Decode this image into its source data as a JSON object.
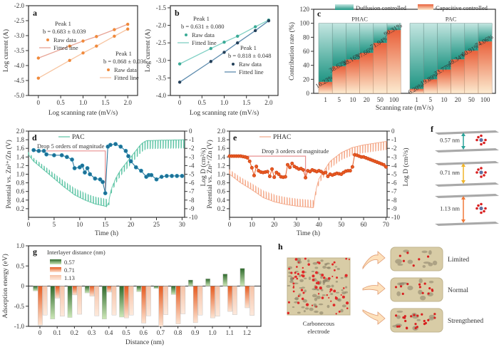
{
  "panels": {
    "a": {
      "letter": "a"
    },
    "b": {
      "letter": "b"
    },
    "c": {
      "letter": "c"
    },
    "d": {
      "letter": "d"
    },
    "e": {
      "letter": "e"
    },
    "f": {
      "letter": "f",
      "labels": [
        "0.57 nm",
        "0.71 nm",
        "1.13 nm"
      ],
      "arrow_colors": [
        "#2aa39a",
        "#f0b428",
        "#f07838"
      ]
    },
    "g": {
      "letter": "g"
    },
    "h": {
      "letter": "h",
      "electrode_label_1": "Carbonecous",
      "electrode_label_2": "electrode",
      "states": [
        "Limited",
        "Normal",
        "Strengthened"
      ]
    }
  },
  "chart_data": [
    {
      "id": "a",
      "type": "scatter",
      "xlabel": "Log scanning rate (mV/s)",
      "ylabel": "Log current (A)",
      "xlim": [
        -0.22,
        2.22
      ],
      "ylim": [
        -5.0,
        -2.0
      ],
      "xtick_labels": [
        "0",
        "0.5",
        "1.0",
        "1.5",
        "2.0"
      ],
      "ytick_labels": [
        "-2.0",
        "-2.5",
        "-3.0",
        "-3.5",
        "-4.0",
        "-4.5",
        "-5.0"
      ],
      "series": [
        {
          "name": "Raw data",
          "fit_name": "Fitted line",
          "peak": "Peak 1",
          "b": "b = 0.683  ± 0.039",
          "color": "#f08a3c",
          "line_color": "#e8a496",
          "x": [
            0,
            0.7,
            1.0,
            1.3,
            1.7,
            2.0
          ],
          "y": [
            -3.75,
            -3.35,
            -3.18,
            -3.03,
            -2.8,
            -2.62
          ]
        },
        {
          "name": "Raw data",
          "fit_name": "Fitted line",
          "peak": "Peak 1",
          "b": "b = 0.868  ± 0.036",
          "color": "#f08a3c",
          "line_color": "#f7c4a0",
          "x": [
            0,
            0.7,
            1.0,
            1.3,
            1.7,
            2.0
          ],
          "y": [
            -4.42,
            -3.83,
            -3.58,
            -3.35,
            -3.02,
            -2.78
          ]
        }
      ]
    },
    {
      "id": "b",
      "type": "scatter",
      "xlabel": "Log scanning rate (mV/s)",
      "ylabel": "Log current (A)",
      "xlim": [
        -0.21,
        2.21
      ],
      "ylim": [
        -4.0,
        -1.44
      ],
      "xtick_labels": [
        "0",
        "0.5",
        "1.0",
        "1.5",
        "2.0"
      ],
      "ytick_labels": [
        "-1.5",
        "-2.0",
        "-2.5",
        "-3.0",
        "-3.5",
        "-4.0"
      ],
      "series": [
        {
          "name": "Raw data",
          "fit_name": "Fitted line",
          "peak": "Peak 1",
          "b": "b = 0.631  ± 0.080",
          "color": "#3aaa96",
          "line_color": "#7fd0c4",
          "x": [
            0,
            0.7,
            1.0,
            1.3,
            1.7,
            2.0
          ],
          "y": [
            -3.1,
            -2.66,
            -2.48,
            -2.31,
            -2.04,
            -1.85
          ]
        },
        {
          "name": "Raw data",
          "fit_name": "Fitted line",
          "peak": "Peak 1",
          "b": "b = 0.818  ± 0.048",
          "color": "#24405a",
          "line_color": "#5e8cae",
          "x": [
            0,
            0.7,
            1.0,
            1.3,
            1.7,
            2.0
          ],
          "y": [
            -3.62,
            -3.03,
            -2.77,
            -2.5,
            -2.15,
            -1.87
          ]
        }
      ]
    },
    {
      "id": "c",
      "type": "bar",
      "stacked": true,
      "xlabel": "Scanning rate (mV/s)",
      "ylabel": "Contribution rate (%)",
      "ylim": [
        0,
        120
      ],
      "ytick_labels": [
        "0",
        "20",
        "40",
        "60",
        "80",
        "100",
        "120"
      ],
      "categories": [
        "1",
        "5",
        "10",
        "20",
        "50",
        "100"
      ],
      "legend": [
        "Duffusion controlled",
        "Capacitive controlled"
      ],
      "colors": {
        "diffusion_top": "#c4e6e1",
        "diffusion_bottom": "#1f9583",
        "capacitive_top": "#e9603a",
        "capacitive_bottom": "#fcebd0"
      },
      "groups": [
        {
          "name": "PHAC",
          "capacitive": [
            16.23,
            38.62,
            48.16,
            57.66,
            71.94,
            90.31
          ],
          "labels": [
            "16.23%",
            "38.62%",
            "48.16%",
            "57.66%",
            "71.94%",
            "90.31%"
          ]
        },
        {
          "name": "PAC",
          "capacitive": [
            6.2,
            19.89,
            33.77,
            48.34,
            60.91,
            74.06
          ],
          "labels": [
            "6.20%",
            "19.89%",
            "33.77%",
            "48.34%",
            "60.91%",
            "74.06%"
          ]
        }
      ]
    },
    {
      "id": "d",
      "type": "line",
      "xlabel": "Time (h)",
      "ylabel": "Potential vs. Zn²⁺/Zn (V)",
      "y2label": "Log D (cm²/s)",
      "xlim": [
        0,
        30.5
      ],
      "ylim": [
        0,
        2.0
      ],
      "y2lim": [
        -10,
        0
      ],
      "xtick_labels": [
        "0",
        "5",
        "10",
        "15",
        "20",
        "25",
        "30"
      ],
      "ytick_labels": [
        "0.2",
        "0.4",
        "0.6",
        "0.8",
        "1.0",
        "1.2",
        "1.4",
        "1.6",
        "1.8",
        "2.0"
      ],
      "y2tick_labels": [
        "0",
        "-1",
        "-2",
        "-3",
        "-4",
        "-5",
        "-6",
        "-7",
        "-8",
        "-9",
        "-10"
      ],
      "legend": "PAC",
      "annotation": "Drop 5 orders of magnitude",
      "annotation_color": "#f5a050",
      "potential_color": "#5cc4a4",
      "logD_color": "#1f6f96",
      "logD_edge": "#2a98b8",
      "drop": {
        "from_t": 1,
        "to_t": 15,
        "logD_high": -2.3,
        "logD_low": -7.2
      },
      "potential": {
        "t": [
          0,
          1,
          3,
          5,
          7,
          9,
          11,
          13,
          15.3,
          15.6,
          16,
          17,
          18,
          20,
          22,
          23,
          26,
          30.3
        ],
        "v": [
          1.45,
          1.3,
          1.1,
          0.9,
          0.7,
          0.52,
          0.4,
          0.31,
          0.25,
          0.3,
          0.6,
          0.9,
          1.1,
          1.4,
          1.7,
          1.78,
          1.79,
          1.8
        ]
      },
      "logD": {
        "t": [
          1,
          2,
          3,
          3.5,
          5,
          6.5,
          7.5,
          8.5,
          9,
          10,
          10.5,
          11,
          11.5,
          12,
          13,
          14,
          14.5,
          15,
          15.5,
          16,
          17,
          18,
          19,
          19.5,
          20,
          21,
          22,
          23,
          23.5,
          24,
          25,
          26,
          27,
          28,
          29,
          30
        ],
        "y": [
          -2.2,
          -2.3,
          -2.3,
          -2.7,
          -2.8,
          -2.8,
          -3.0,
          -3.3,
          -4.3,
          -4.2,
          -4.0,
          -4.8,
          -4.3,
          -5.0,
          -5.5,
          -5.6,
          -5.9,
          -7.2,
          -1.8,
          -1.6,
          -1.5,
          -1.8,
          -2.3,
          -2.9,
          -3.5,
          -4.2,
          -4.6,
          -5.3,
          -5.1,
          -5.1,
          -5.6,
          -5.3,
          -5.2,
          -5.2,
          -5.2,
          -5.2
        ]
      }
    },
    {
      "id": "e",
      "type": "line",
      "xlabel": "Time (h)",
      "ylabel": "Potential vs. Zn²⁺/Zn (V)",
      "y2label": "Log D (cm²/s)",
      "xlim": [
        0,
        70.5
      ],
      "ylim": [
        0,
        2.0
      ],
      "y2lim": [
        -10,
        0
      ],
      "xtick_labels": [
        "0",
        "10",
        "20",
        "30",
        "40",
        "50",
        "60",
        "70"
      ],
      "ytick_labels": [
        "0.2",
        "0.4",
        "0.6",
        "0.8",
        "1.0",
        "1.2",
        "1.4",
        "1.6",
        "1.8",
        "2.0"
      ],
      "y2tick_labels": [
        "0",
        "-1",
        "-2",
        "-3",
        "-4",
        "-5",
        "-6",
        "-7",
        "-8",
        "-9",
        "-10"
      ],
      "legend": "PHAC",
      "annotation": "Drop 3 orders of magnitude",
      "annotation_color": "#f5a050",
      "potential_color": "#f4a888",
      "logD_color": "#e85a22",
      "logD_edge": "#c83c10",
      "drop": {
        "from_t": 0,
        "to_t": 34,
        "logD_high": -2.9,
        "logD_low": -5.4
      },
      "potential": {
        "t": [
          0,
          5,
          10,
          15,
          20,
          25,
          30,
          38,
          38.5,
          40,
          45,
          50,
          55,
          60,
          65,
          70
        ],
        "v": [
          1.0,
          0.8,
          0.64,
          0.46,
          0.36,
          0.3,
          0.26,
          0.22,
          0.6,
          0.9,
          1.3,
          1.5,
          1.62,
          1.68,
          1.72,
          1.76
        ]
      },
      "logD": {
        "t": [
          0,
          1,
          2,
          3,
          4,
          5,
          6,
          7,
          8,
          9,
          10,
          11,
          12,
          13,
          14,
          15,
          16,
          17,
          18,
          19,
          20,
          21,
          22,
          23,
          24,
          25,
          26,
          27,
          28,
          29,
          30,
          31,
          32,
          33,
          34,
          35,
          36,
          37,
          38,
          39,
          40,
          41,
          42,
          43,
          44,
          45,
          46,
          47,
          48,
          49,
          50,
          51,
          52,
          53,
          54,
          55,
          56,
          57,
          58,
          59,
          60,
          61,
          62,
          63,
          64,
          65,
          66,
          67,
          68,
          69,
          70
        ],
        "y": [
          -2.9,
          -2.9,
          -2.9,
          -2.9,
          -2.9,
          -2.9,
          -2.95,
          -3.0,
          -3.1,
          -3.5,
          -4.25,
          -5.15,
          -4.1,
          -4.6,
          -4.75,
          -4.8,
          -4.75,
          -4.7,
          -5.25,
          -4.4,
          -5.35,
          -4.8,
          -5.0,
          -5.3,
          -5.35,
          -5.3,
          -3.9,
          -4.2,
          -3.75,
          -4.1,
          -4.25,
          -4.4,
          -4.35,
          -4.5,
          -5.4,
          -4.6,
          -4.7,
          -4.5,
          -4.6,
          -4.7,
          -4.6,
          -4.7,
          -4.9,
          -4.8,
          -5.25,
          -5.0,
          -5.1,
          -5.0,
          -4.9,
          -4.95,
          -5.0,
          -4.8,
          -4.65,
          -4.6,
          -4.6,
          -4.15,
          -2.75,
          -2.8,
          -2.9,
          -3.0,
          -3.0,
          -3.1,
          -3.2,
          -3.3,
          -3.4,
          -3.5,
          -3.6,
          -3.7,
          -3.8,
          -3.9,
          -4.15
        ]
      }
    },
    {
      "id": "g",
      "type": "bar",
      "xlabel": "Distance (nm)",
      "ylabel": "Adsorption energy (eV)",
      "ylim": [
        -1.0,
        1.0
      ],
      "ytick_labels": [
        "-1.0",
        "-0.5",
        "0",
        "0.5",
        "1.0"
      ],
      "legend_title": "Interlayer distance (nm)",
      "categories": [
        "0",
        "0.1",
        "0.2",
        "0.3",
        "0.4",
        "0.5",
        "0.6",
        "0.7",
        "0.8",
        "0.9",
        "1.0",
        "1.1",
        "1.2"
      ],
      "series": [
        {
          "name": "0.57",
          "dark": "#2f6a2c",
          "light": "#cde8b8",
          "values": [
            -0.12,
            -0.82,
            -0.78,
            -0.17,
            -0.82,
            -0.77,
            -0.14,
            -0.06,
            -0.21,
            0.15,
            0.18,
            0.3,
            0.44
          ]
        },
        {
          "name": "0.71",
          "dark": "#e65a1e",
          "light": "#fde4d2",
          "values": [
            -0.97,
            -0.3,
            -0.22,
            -0.25,
            -0.15,
            -0.79,
            -0.92,
            -1.0,
            -0.94,
            -0.91,
            -0.79,
            -0.63,
            -0.54
          ]
        },
        {
          "name": "1.13",
          "dark": "#f6c2a6",
          "light": "#fde9dc",
          "values": [
            -0.72,
            -0.75,
            -0.7,
            -0.74,
            -0.72,
            -0.72,
            -0.74,
            -0.71,
            -0.69,
            -0.72,
            -0.75,
            -0.71,
            -0.73
          ]
        }
      ]
    }
  ]
}
